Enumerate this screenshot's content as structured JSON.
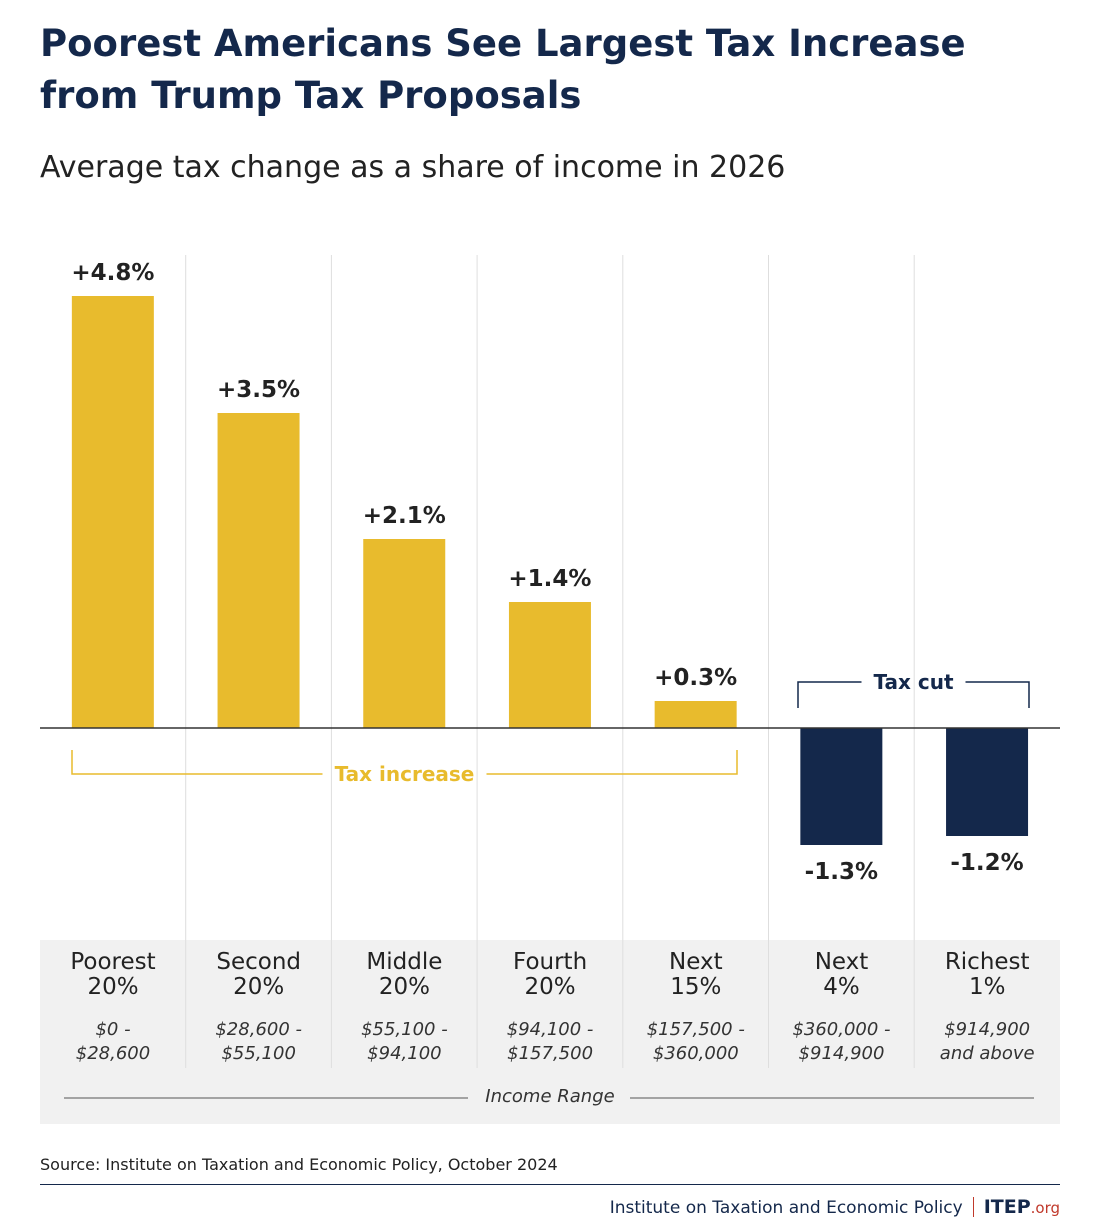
{
  "chart_data": {
    "type": "bar",
    "title": "Poorest Americans See Largest Tax Increase from Trump Tax Proposals",
    "subtitle": "Average tax change as a share of income in 2026",
    "categories": [
      "Poorest 20%",
      "Second 20%",
      "Middle 20%",
      "Fourth 20%",
      "Next 15%",
      "Next 4%",
      "Richest 1%"
    ],
    "category_lines": [
      [
        "Poorest",
        "20%"
      ],
      [
        "Second",
        "20%"
      ],
      [
        "Middle",
        "20%"
      ],
      [
        "Fourth",
        "20%"
      ],
      [
        "Next",
        "15%"
      ],
      [
        "Next",
        "4%"
      ],
      [
        "Richest",
        "1%"
      ]
    ],
    "ranges": [
      [
        "$0 -",
        "$28,600"
      ],
      [
        "$28,600 -",
        "$55,100"
      ],
      [
        "$55,100 -",
        "$94,100"
      ],
      [
        "$94,100 -",
        "$157,500"
      ],
      [
        "$157,500 -",
        "$360,000"
      ],
      [
        "$360,000 -",
        "$914,900"
      ],
      [
        "$914,900",
        "and above"
      ]
    ],
    "values": [
      4.8,
      3.5,
      2.1,
      1.4,
      0.3,
      -1.3,
      -1.2
    ],
    "value_labels": [
      "+4.8%",
      "+3.5%",
      "+2.1%",
      "+1.4%",
      "+0.3%",
      "-1.3%",
      "-1.2%"
    ],
    "unit": "%",
    "xlabel": "Income Range",
    "annotations": {
      "tax_increase": "Tax increase",
      "tax_cut": "Tax cut"
    },
    "colors": {
      "increase": "#e8bb2d",
      "decrease": "#14284b",
      "title": "#14284b",
      "panel": "#f1f1f1"
    },
    "grid": false
  },
  "source": "Source: Institute on Taxation and Economic Policy, October 2024",
  "footer": {
    "org": "Institute on Taxation and Economic Policy",
    "logo": "ITEP",
    "logo_suffix": ".org"
  }
}
